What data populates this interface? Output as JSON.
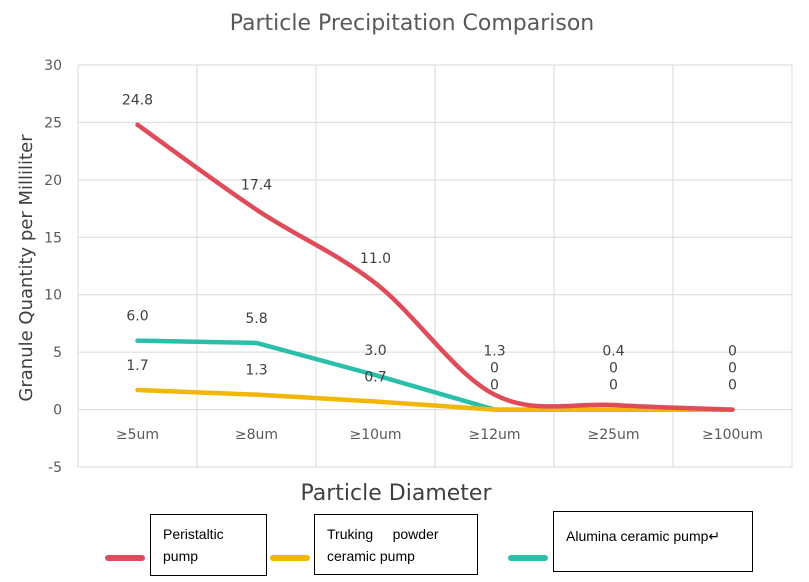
{
  "chart_data": {
    "type": "line",
    "title": "Particle Precipitation Comparison",
    "xlabel": "Particle Diameter",
    "ylabel": "Granule Quantity per Milliliter",
    "categories": [
      "≥5um",
      "≥8um",
      "≥10um",
      "≥12um",
      "≥25um",
      "≥100um"
    ],
    "ylim": [
      -5,
      30
    ],
    "yticks": [
      -5,
      0,
      5,
      10,
      15,
      20,
      25,
      30
    ],
    "grid": true,
    "legend_position": "bottom",
    "series": [
      {
        "name": "Peristaltic pump",
        "color": "#E04B5A",
        "smooth": true,
        "values": [
          24.8,
          17.4,
          11.0,
          1.3,
          0.4,
          0
        ],
        "labels": [
          "24.8",
          "17.4",
          "11.0",
          "1.3",
          "0.4",
          "0"
        ]
      },
      {
        "name": "Truking powder ceramic pump",
        "color": "#F2B705",
        "smooth": false,
        "values": [
          1.7,
          1.3,
          0.7,
          0,
          0,
          0
        ],
        "labels": [
          "1.7",
          "1.3",
          "0.7",
          "0",
          "0",
          "0"
        ]
      },
      {
        "name": "Alumina ceramic pump",
        "color": "#2BBFA9",
        "smooth": false,
        "values": [
          6.0,
          5.8,
          3.0,
          0,
          0,
          0
        ],
        "labels": [
          "6.0",
          "5.8",
          "3.0",
          "0",
          "0",
          "0"
        ]
      }
    ]
  },
  "legend": {
    "items": [
      {
        "line1": "Peristaltic",
        "line2": "pump"
      },
      {
        "line1": "Truking     powder",
        "line2": "ceramic pump"
      },
      {
        "line1": "Alumina ceramic pump↵",
        "line2": ""
      }
    ]
  }
}
